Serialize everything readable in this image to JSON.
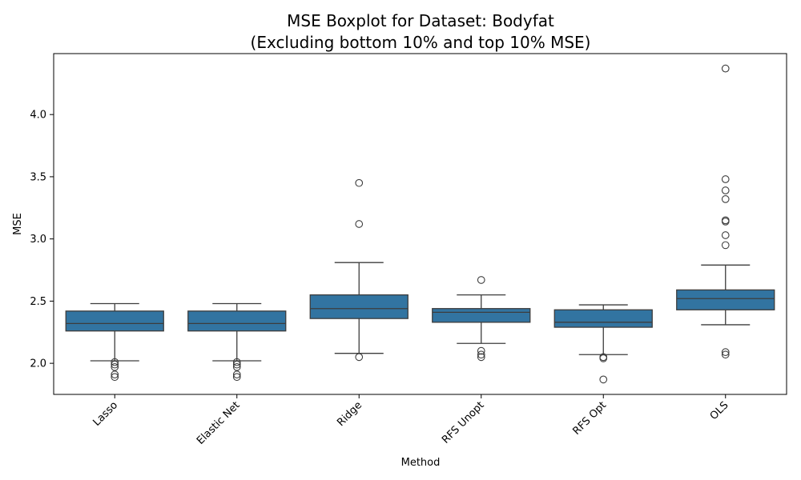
{
  "chart_data": {
    "type": "boxplot",
    "title": "MSE Boxplot for Dataset: Bodyfat",
    "subtitle": "(Excluding bottom 10% and top 10% MSE)",
    "xlabel": "Method",
    "ylabel": "MSE",
    "ylim": [
      1.75,
      4.49
    ],
    "yticks": [
      2.0,
      2.5,
      3.0,
      3.5,
      4.0
    ],
    "ytick_labels": [
      "2.0",
      "2.5",
      "3.0",
      "3.5",
      "4.0"
    ],
    "box_color": "#3274a1",
    "edge_color": "#3d3d3d",
    "categories": [
      "Lasso",
      "Elastic Net",
      "Ridge",
      "RFS Unopt",
      "RFS Opt",
      "OLS"
    ],
    "boxes": [
      {
        "category": "Lasso",
        "whisker_low": 2.02,
        "q1": 2.26,
        "median": 2.32,
        "q3": 2.42,
        "whisker_high": 2.48,
        "outliers": [
          2.01,
          1.99,
          1.97,
          1.91,
          1.89
        ]
      },
      {
        "category": "Elastic Net",
        "whisker_low": 2.02,
        "q1": 2.26,
        "median": 2.32,
        "q3": 2.42,
        "whisker_high": 2.48,
        "outliers": [
          2.01,
          1.99,
          1.97,
          1.91,
          1.89
        ]
      },
      {
        "category": "Ridge",
        "whisker_low": 2.08,
        "q1": 2.36,
        "median": 2.44,
        "q3": 2.55,
        "whisker_high": 2.81,
        "outliers": [
          3.45,
          3.12,
          2.05
        ]
      },
      {
        "category": "RFS Unopt",
        "whisker_low": 2.16,
        "q1": 2.33,
        "median": 2.41,
        "q3": 2.44,
        "whisker_high": 2.55,
        "outliers": [
          2.67,
          2.1,
          2.07,
          2.05
        ]
      },
      {
        "category": "RFS Opt",
        "whisker_low": 2.07,
        "q1": 2.29,
        "median": 2.33,
        "q3": 2.43,
        "whisker_high": 2.47,
        "outliers": [
          2.05,
          2.04,
          1.87
        ]
      },
      {
        "category": "OLS",
        "whisker_low": 2.31,
        "q1": 2.43,
        "median": 2.52,
        "q3": 2.59,
        "whisker_high": 2.79,
        "outliers": [
          4.37,
          3.48,
          3.39,
          3.32,
          3.15,
          3.14,
          3.03,
          2.95,
          2.09,
          2.07
        ]
      }
    ]
  }
}
